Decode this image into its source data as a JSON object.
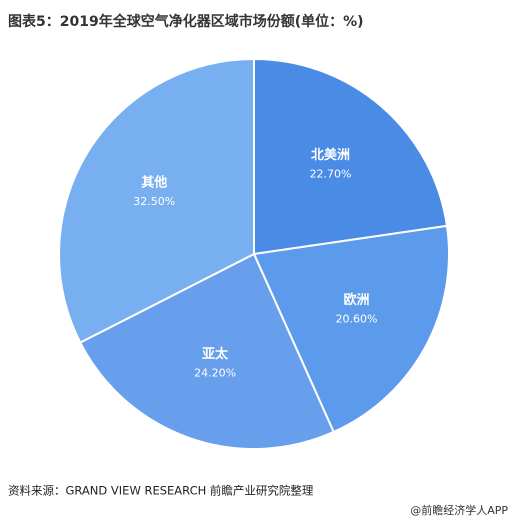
{
  "chart_data": {
    "type": "pie",
    "title": "图表5：2019年全球空气净化器区域市场份额(单位：%)",
    "categories": [
      "北美洲",
      "欧洲",
      "亚太",
      "其他"
    ],
    "values": [
      22.7,
      20.6,
      24.2,
      32.5
    ],
    "value_labels": [
      "22.70%",
      "20.60%",
      "24.20%",
      "32.50%"
    ],
    "colors": [
      "#4a8be6",
      "#5c9aec",
      "#679fed",
      "#77aff0"
    ],
    "source": "资料来源：GRAND VIEW RESEARCH 前瞻产业研究院整理",
    "footer": "@前瞻经济学人APP"
  }
}
